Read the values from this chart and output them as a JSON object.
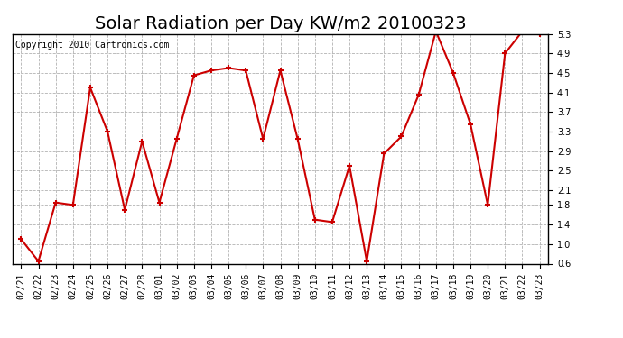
{
  "title": "Solar Radiation per Day KW/m2 20100323",
  "copyright_text": "Copyright 2010 Cartronics.com",
  "dates": [
    "02/21",
    "02/22",
    "02/23",
    "02/24",
    "02/25",
    "02/26",
    "02/27",
    "02/28",
    "03/01",
    "03/02",
    "03/03",
    "03/04",
    "03/05",
    "03/06",
    "03/07",
    "03/08",
    "03/09",
    "03/10",
    "03/11",
    "03/12",
    "03/13",
    "03/14",
    "03/15",
    "03/16",
    "03/17",
    "03/18",
    "03/19",
    "03/20",
    "03/21",
    "03/22",
    "03/23"
  ],
  "values": [
    1.1,
    0.65,
    1.85,
    1.8,
    4.2,
    3.3,
    1.7,
    3.1,
    1.85,
    3.15,
    4.45,
    4.55,
    4.6,
    4.55,
    3.15,
    4.55,
    3.15,
    1.5,
    1.45,
    2.6,
    0.65,
    2.85,
    3.2,
    4.05,
    5.35,
    4.5,
    3.45,
    1.8,
    4.9,
    5.35,
    5.3
  ],
  "line_color": "#cc0000",
  "marker_color": "#cc0000",
  "bg_color": "#ffffff",
  "grid_color": "#aaaaaa",
  "ylim": [
    0.6,
    5.3
  ],
  "yticks": [
    0.6,
    1.0,
    1.4,
    1.8,
    2.1,
    2.5,
    2.9,
    3.3,
    3.7,
    4.1,
    4.5,
    4.9,
    5.3
  ],
  "title_fontsize": 14,
  "copyright_fontsize": 7,
  "tick_fontsize": 7
}
